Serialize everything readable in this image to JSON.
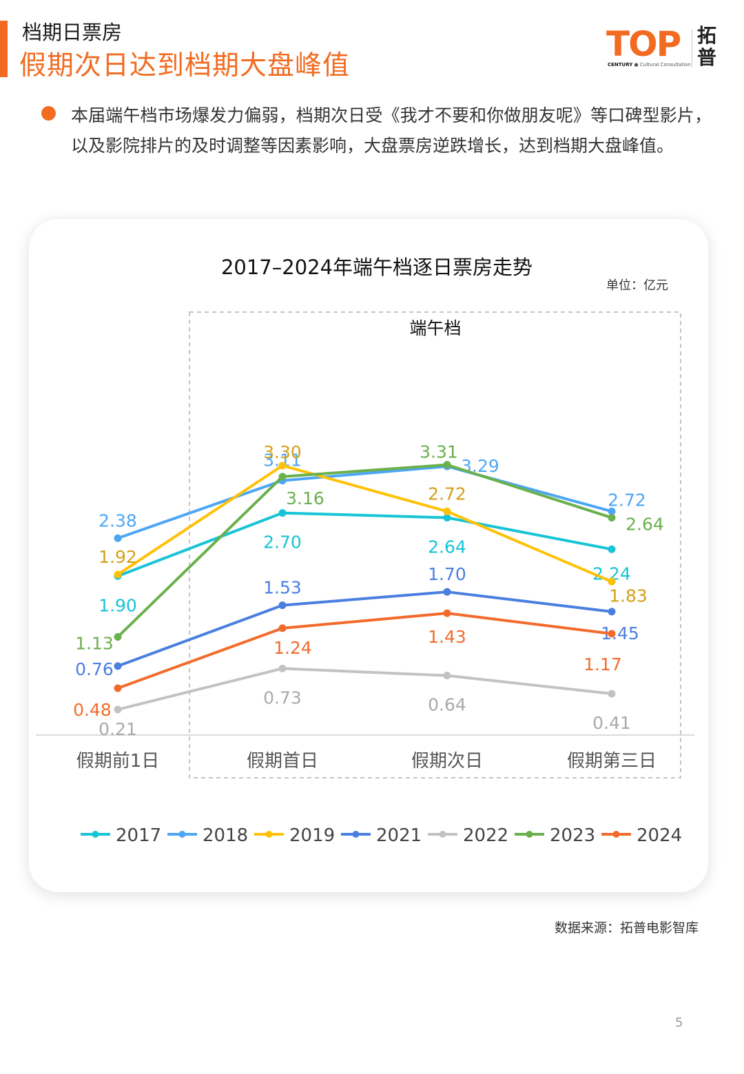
{
  "header": {
    "section_label": "档期日票房",
    "headline": "假期次日达到档期大盘峰值"
  },
  "logo": {
    "word": "TOP",
    "cn_top": "拓",
    "cn_bottom": "普",
    "sub_bold": "CENTURY",
    "sub_rest": "Cultural Consultation",
    "brand_color": "#f26b21"
  },
  "bullet": {
    "text": "本届端午档市场爆发力偏弱，档期次日受《我才不要和你做朋友呢》等口碑型影片，以及影院排片的及时调整等因素影响，大盘票房逆跌增长，达到档期大盘峰值。"
  },
  "chart_data": {
    "type": "line",
    "title": "2017–2024年端午档逐日票房走势",
    "unit": "单位：亿元",
    "holiday_window_label": "端午档",
    "categories": [
      "假期前1日",
      "假期首日",
      "假期次日",
      "假期第三日"
    ],
    "ylim": [
      0,
      3.6
    ],
    "grid": false,
    "legend_position": "bottom",
    "series": [
      {
        "name": "2017",
        "color": "#17c4d6",
        "label_color": "#17c4d6",
        "values": [
          1.9,
          2.7,
          2.64,
          2.24
        ]
      },
      {
        "name": "2018",
        "color": "#4da6f5",
        "label_color": "#4da6f5",
        "values": [
          2.38,
          3.11,
          3.29,
          2.72
        ]
      },
      {
        "name": "2019",
        "color": "#ffc107",
        "label_color": "#d4a017",
        "values": [
          1.92,
          3.3,
          2.72,
          1.83
        ]
      },
      {
        "name": "2021",
        "color": "#4a7fe0",
        "label_color": "#4a7fe0",
        "values": [
          0.76,
          1.53,
          1.7,
          1.45
        ]
      },
      {
        "name": "2022",
        "color": "#c2c2c2",
        "label_color": "#a9a9a9",
        "values": [
          0.21,
          0.73,
          0.64,
          0.41
        ]
      },
      {
        "name": "2023",
        "color": "#6ab04c",
        "label_color": "#6ab04c",
        "values": [
          1.13,
          3.16,
          3.31,
          2.64
        ]
      },
      {
        "name": "2024",
        "color": "#f26b2c",
        "label_color": "#f26b2c",
        "values": [
          0.48,
          1.24,
          1.43,
          1.17
        ]
      }
    ]
  },
  "footer": {
    "source": "数据来源：拓普电影智库",
    "page_number": "5"
  }
}
